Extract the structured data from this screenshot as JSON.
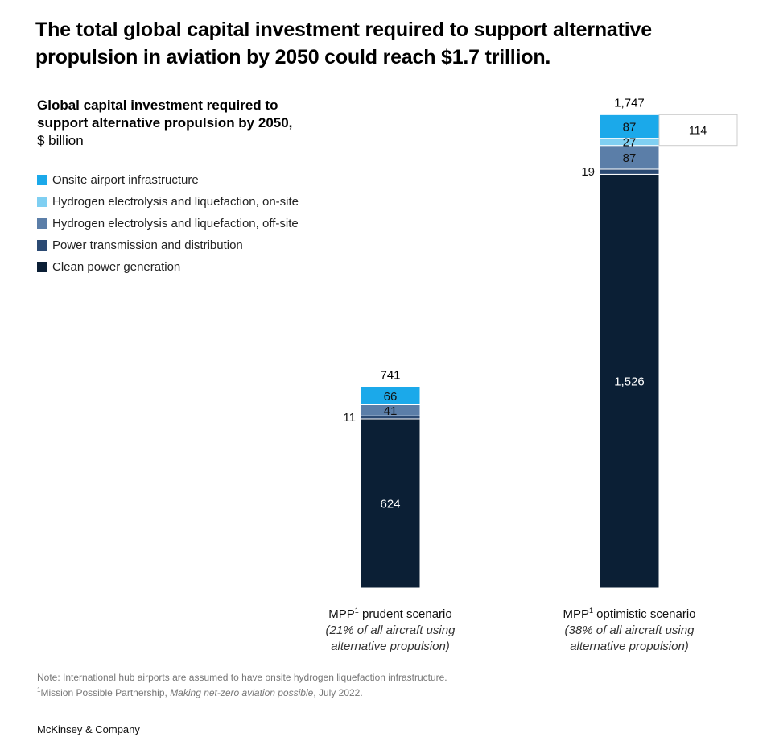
{
  "headline": "The total global capital investment required to support alternative propulsion in aviation by 2050 could reach $1.7 trillion.",
  "subtitle": {
    "bold": "Global capital investment required to support alternative propulsion by 2050,",
    "unit": " $ billion"
  },
  "footnotes": {
    "note": "Note: International hub airports are assumed to have onsite hydrogen liquefaction infrastructure.",
    "ref_mark": "1",
    "ref_before": "Mission Possible Partnership, ",
    "ref_italic": "Making net-zero aviation possible",
    "ref_after": ", July 2022."
  },
  "source": "McKinsey & Company",
  "chart_data": {
    "type": "bar",
    "stacked": true,
    "categories": [
      {
        "label": "MPP",
        "sup": "1",
        "label_rest": " prudent scenario",
        "sub": "(21% of all aircraft using alternative propulsion)"
      },
      {
        "label": "MPP",
        "sup": "1",
        "label_rest": " optimistic scenario",
        "sub": "(38% of all aircraft using alternative propulsion)"
      }
    ],
    "totals": [
      "741",
      "1,747"
    ],
    "series": [
      {
        "name": "Clean power generation",
        "color": "#0b1f35",
        "label_color": "#ffffff",
        "values": [
          624,
          1526
        ],
        "labels": [
          "624",
          "1,526"
        ]
      },
      {
        "name": "Power transmission and distribution",
        "color": "#2b4a73",
        "label_color": "#000000",
        "values": [
          11,
          19
        ],
        "labels": [
          "11",
          "19"
        ]
      },
      {
        "name": "Hydrogen electrolysis and liquefaction, off-site",
        "color": "#5b7ea8",
        "label_color": "#111111",
        "values": [
          41,
          87
        ],
        "labels": [
          "41",
          "87"
        ]
      },
      {
        "name": "Hydrogen electrolysis and liquefaction, on-site",
        "color": "#7fcff2",
        "label_color": "#111111",
        "values": [
          0,
          27
        ],
        "labels": [
          "",
          "27"
        ]
      },
      {
        "name": "Onsite airport infrastructure",
        "color": "#1ba9ea",
        "label_color": "#111111",
        "values": [
          66,
          87
        ],
        "labels": [
          "66",
          "87"
        ]
      }
    ],
    "legend_order": [
      4,
      3,
      2,
      1,
      0
    ],
    "callout": {
      "label": "114",
      "category": 1,
      "series": [
        3,
        4
      ]
    },
    "ylim": [
      0,
      1747
    ]
  }
}
